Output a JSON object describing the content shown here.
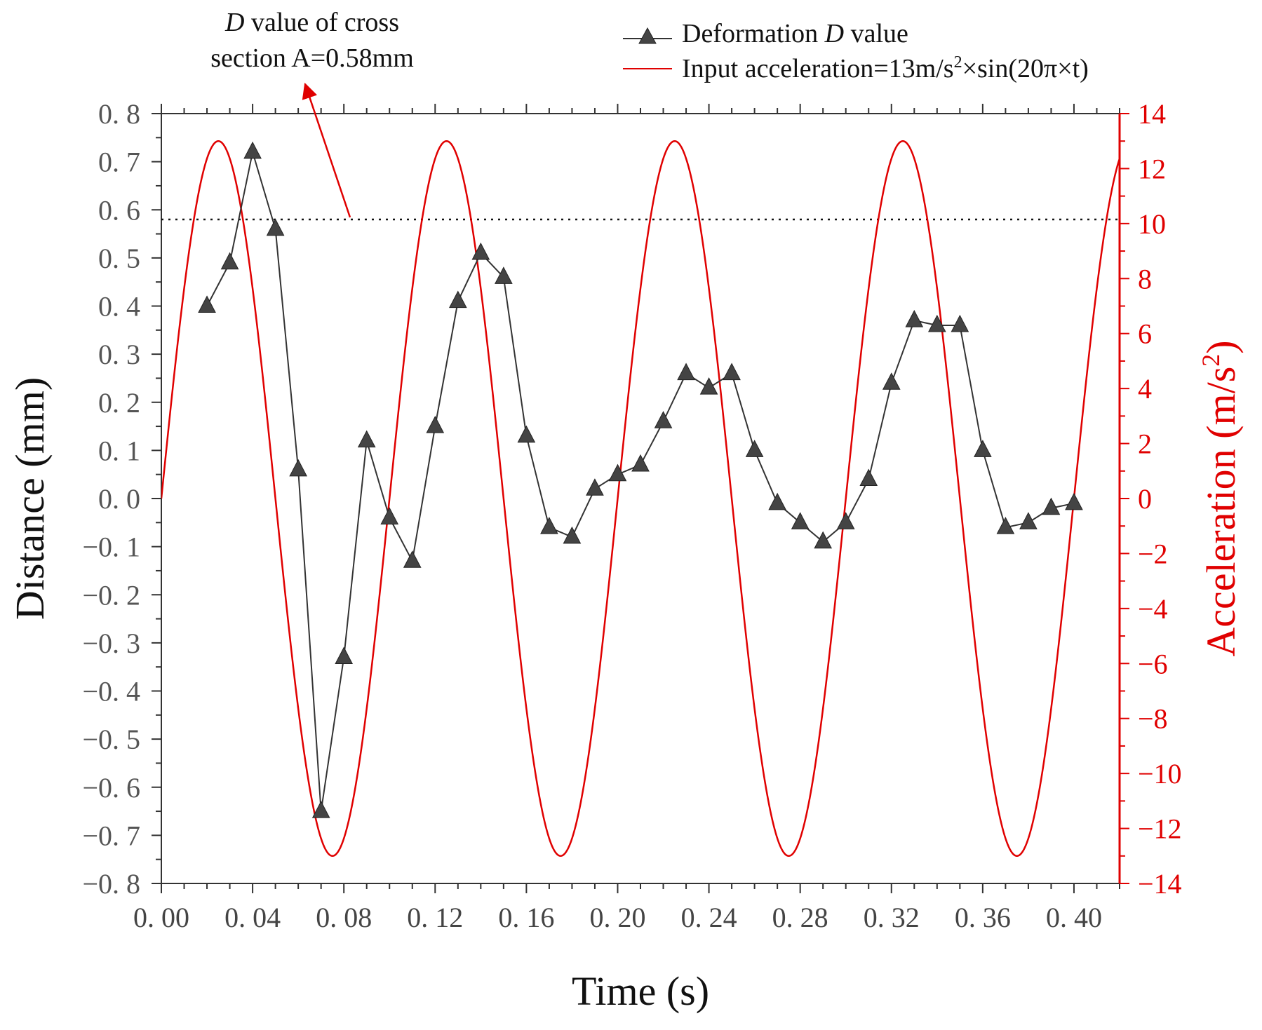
{
  "chart_data": {
    "type": "line",
    "x_axis": {
      "label": "Time (s)",
      "range": [
        0,
        0.42
      ],
      "ticks": [
        0,
        0.04,
        0.08,
        0.12,
        0.16,
        0.2,
        0.24,
        0.28,
        0.32,
        0.36,
        0.4
      ],
      "tick_labels": [
        "0. 00",
        "0. 04",
        "0. 08",
        "0. 12",
        "0. 16",
        "0. 20",
        "0. 24",
        "0. 28",
        "0. 32",
        "0. 36",
        "0. 40"
      ]
    },
    "y_left": {
      "label": "Distance (mm)",
      "range": [
        -0.8,
        0.8
      ],
      "ticks": [
        0.8,
        0.7,
        0.6,
        0.5,
        0.4,
        0.3,
        0.2,
        0.1,
        0.0,
        -0.1,
        -0.2,
        -0.3,
        -0.4,
        -0.5,
        -0.6,
        -0.7,
        -0.8
      ],
      "tick_labels": [
        "0. 8",
        "0. 7",
        "0. 6",
        "0. 5",
        "0. 4",
        "0. 3",
        "0. 2",
        "0. 1",
        "0. 0",
        "−0. 1",
        "−0. 2",
        "−0. 3",
        "−0. 4",
        "−0. 5",
        "−0. 6",
        "−0. 7",
        "−0. 8"
      ],
      "color": "#333333"
    },
    "y_right": {
      "label_main": "Acceleration (m/s",
      "label_sup": "2",
      "label_end": ")",
      "range": [
        -14,
        14
      ],
      "ticks": [
        14,
        12,
        10,
        8,
        6,
        4,
        2,
        0,
        -2,
        -4,
        -6,
        -8,
        -10,
        -12,
        -14
      ],
      "tick_labels": [
        "14",
        "12",
        "10",
        "8",
        "6",
        "4",
        "2",
        "0",
        "−2",
        "−4",
        "−6",
        "−8",
        "−10",
        "−12",
        "−14"
      ],
      "color": "#e00000"
    },
    "series": [
      {
        "name": "Deformation D value",
        "legend_prefix": "Deformation ",
        "legend_italic": "D",
        "legend_suffix": " value",
        "axis": "left",
        "color": "#333333",
        "marker": "triangle",
        "x": [
          0.02,
          0.03,
          0.04,
          0.05,
          0.06,
          0.07,
          0.08,
          0.09,
          0.1,
          0.11,
          0.12,
          0.13,
          0.14,
          0.15,
          0.16,
          0.17,
          0.18,
          0.19,
          0.2,
          0.21,
          0.22,
          0.23,
          0.24,
          0.25,
          0.26,
          0.27,
          0.28,
          0.29,
          0.3,
          0.31,
          0.32,
          0.33,
          0.34,
          0.35,
          0.36,
          0.37,
          0.38,
          0.39,
          0.4
        ],
        "y": [
          0.4,
          0.49,
          0.72,
          0.56,
          0.06,
          -0.65,
          -0.33,
          0.12,
          -0.04,
          -0.13,
          0.15,
          0.41,
          0.51,
          0.46,
          0.13,
          -0.06,
          -0.08,
          0.02,
          0.05,
          0.07,
          0.16,
          0.26,
          0.23,
          0.26,
          0.1,
          -0.01,
          -0.05,
          -0.09,
          -0.05,
          0.04,
          0.24,
          0.37,
          0.36,
          0.36,
          0.1,
          -0.06,
          -0.05,
          -0.02,
          -0.01
        ]
      },
      {
        "name": "Input acceleration=13m/s²×sin(20π×t)",
        "legend_main": "Input acceleration=13m/s",
        "legend_sup": "2",
        "legend_end": "×sin(20π×t)",
        "axis": "right",
        "color": "#e00000",
        "amplitude": 13,
        "angular_frequency_label": "20π",
        "curve_points": [
          [
            0,
            0
          ],
          [
            0.025,
            13
          ],
          [
            0.075,
            -13
          ],
          [
            0.125,
            13
          ],
          [
            0.175,
            -13
          ],
          [
            0.225,
            13
          ],
          [
            0.275,
            -13
          ],
          [
            0.325,
            13
          ],
          [
            0.375,
            -13
          ],
          [
            0.42,
            12.4
          ]
        ]
      }
    ],
    "reference_line": {
      "y": 0.58,
      "style": "dotted",
      "annotation_line1_italic": "D",
      "annotation_line1_rest": " value of cross",
      "annotation_line2": "section A=0.58mm"
    }
  }
}
